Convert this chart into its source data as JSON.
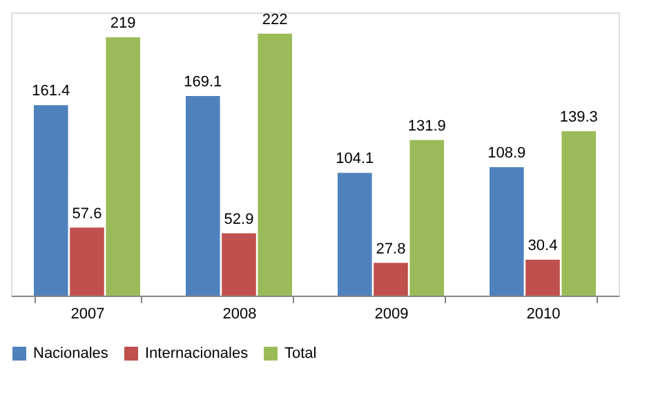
{
  "chart_data": {
    "type": "bar",
    "categories": [
      "2007",
      "2008",
      "2009",
      "2010"
    ],
    "series": [
      {
        "name": "Nacionales",
        "color": "#4f81bd",
        "values": [
          161.4,
          169.1,
          104.1,
          108.9
        ]
      },
      {
        "name": "Internacionales",
        "color": "#c0504d",
        "values": [
          57.6,
          52.9,
          27.8,
          30.4
        ]
      },
      {
        "name": "Total",
        "color": "#9bbb59",
        "values": [
          219,
          222,
          131.9,
          139.3
        ]
      }
    ],
    "data_labels": true,
    "legend": "bottom",
    "grid": false
  }
}
